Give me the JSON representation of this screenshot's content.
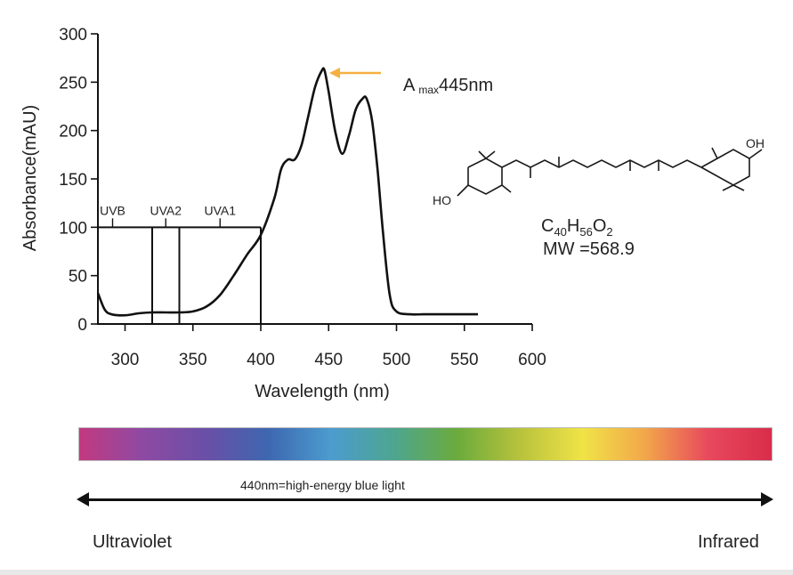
{
  "chart_data": {
    "type": "line",
    "xlabel": "Wavelength (nm)",
    "ylabel": "Absorbance(mAU)",
    "xlim": [
      280,
      600
    ],
    "ylim": [
      0,
      300
    ],
    "x_ticks": [
      300,
      350,
      400,
      450,
      500,
      550,
      600
    ],
    "y_ticks": [
      0,
      50,
      100,
      150,
      200,
      250,
      300
    ],
    "grid": false,
    "series": [
      {
        "x": [
          280,
          285,
          290,
          300,
          310,
          320,
          330,
          340,
          350,
          360,
          370,
          380,
          390,
          400,
          410,
          415,
          420,
          425,
          430,
          435,
          440,
          445,
          447,
          450,
          455,
          460,
          465,
          470,
          475,
          478,
          482,
          486,
          490,
          495,
          500,
          510,
          520,
          540,
          560
        ],
        "y": [
          32,
          15,
          10,
          9,
          11,
          12,
          12,
          12,
          13,
          18,
          30,
          50,
          72,
          92,
          130,
          160,
          170,
          170,
          185,
          215,
          245,
          262,
          262,
          240,
          198,
          176,
          195,
          222,
          233,
          233,
          210,
          160,
          95,
          30,
          13,
          10,
          10,
          10,
          10
        ]
      }
    ],
    "bands": [
      {
        "name": "UVB",
        "start": 280,
        "end": 320
      },
      {
        "name": "UVA2",
        "start": 320,
        "end": 340
      },
      {
        "name": "UVA1",
        "start": 340,
        "end": 400
      }
    ],
    "band_height": 100,
    "annotations": [
      {
        "text_main": "A",
        "text_sub": "max",
        "text_value": "445nm",
        "x": 446,
        "y": 262,
        "arrow_color": "#f5b041"
      }
    ]
  },
  "molecule": {
    "oh_right": "OH",
    "ho_left": "HO",
    "formula_parts": [
      "C",
      "40",
      "H",
      "56",
      "O",
      "2"
    ],
    "mw": "MW =568.9"
  },
  "spectrum": {
    "arrow_caption": "440nm=high-energy blue light",
    "left_label": "Ultraviolet",
    "right_label": "Infrared",
    "gradient_colors": [
      "#c2397f",
      "#8e4aa3",
      "#6a4fa6",
      "#3e67b0",
      "#4c9ccf",
      "#4ea58f",
      "#6aab3d",
      "#b8c23c",
      "#f0e347",
      "#f2a64a",
      "#e8485d",
      "#d82d4a"
    ]
  }
}
